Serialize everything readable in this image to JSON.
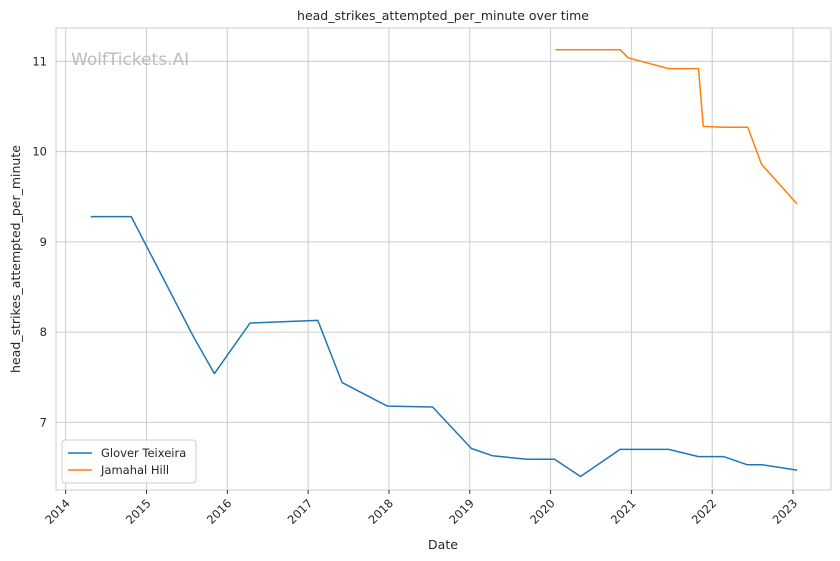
{
  "chart_data": {
    "type": "line",
    "title": "head_strikes_attempted_per_minute over time",
    "xlabel": "Date",
    "ylabel": "head_strikes_attempted_per_minute",
    "watermark": "WolfTickets.AI",
    "xlim": [
      2013.88,
      2023.47
    ],
    "ylim": [
      6.25,
      11.37
    ],
    "x_ticks": [
      2014,
      2015,
      2016,
      2017,
      2018,
      2019,
      2020,
      2021,
      2022,
      2023
    ],
    "x_tick_labels": [
      "2014",
      "2015",
      "2016",
      "2017",
      "2018",
      "2019",
      "2020",
      "2021",
      "2022",
      "2023"
    ],
    "y_ticks": [
      7,
      8,
      9,
      10,
      11
    ],
    "y_tick_labels": [
      "7",
      "8",
      "9",
      "10",
      "11"
    ],
    "grid": true,
    "legend_position": "lower-left",
    "series": [
      {
        "name": "Glover Teixeira",
        "color": "#1f77b4",
        "x": [
          2014.31,
          2014.81,
          2015.58,
          2015.84,
          2016.28,
          2016.52,
          2017.12,
          2017.42,
          2017.98,
          2018.54,
          2019.02,
          2019.28,
          2019.71,
          2020.05,
          2020.37,
          2020.86,
          2021.46,
          2021.83,
          2022.14,
          2022.43,
          2022.61,
          2023.05
        ],
        "y": [
          9.28,
          9.28,
          7.95,
          7.54,
          8.1,
          8.11,
          8.13,
          7.44,
          7.18,
          7.17,
          6.71,
          6.63,
          6.59,
          6.59,
          6.4,
          6.7,
          6.7,
          6.62,
          6.62,
          6.53,
          6.53,
          6.47
        ]
      },
      {
        "name": "Jamahal Hill",
        "color": "#ff7f0e",
        "x": [
          2020.06,
          2020.86,
          2020.96,
          2021.46,
          2021.83,
          2021.89,
          2022.14,
          2022.44,
          2022.61,
          2023.05
        ],
        "y": [
          11.13,
          11.13,
          11.04,
          10.92,
          10.92,
          10.28,
          10.27,
          10.27,
          9.86,
          9.42
        ]
      }
    ]
  }
}
